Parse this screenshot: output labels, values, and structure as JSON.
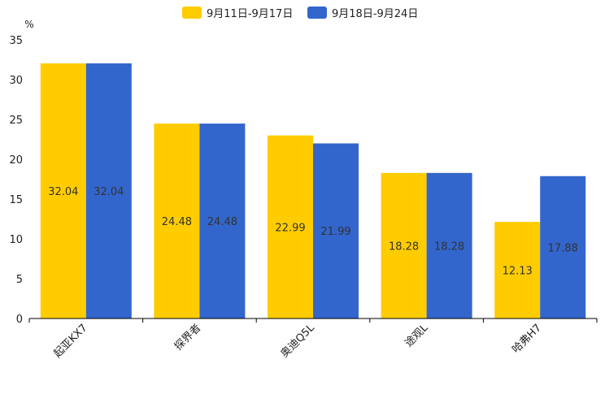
{
  "chart_data": {
    "type": "bar",
    "unit": "%",
    "categories": [
      "起亚KX7",
      "探界者",
      "奥迪Q5L",
      "途观L",
      "哈弗H7"
    ],
    "series": [
      {
        "name": "9月11日-9月17日",
        "color": "#FFCC00",
        "values": [
          32.04,
          24.48,
          22.99,
          18.28,
          12.13
        ]
      },
      {
        "name": "9月18日-9月24日",
        "color": "#3366CC",
        "values": [
          32.04,
          24.48,
          21.99,
          18.28,
          17.88
        ]
      }
    ],
    "ylim": [
      0,
      35
    ],
    "yticks": [
      0,
      5,
      10,
      15,
      20,
      25,
      30,
      35
    ],
    "legend_position": "top-center",
    "grid": false
  }
}
